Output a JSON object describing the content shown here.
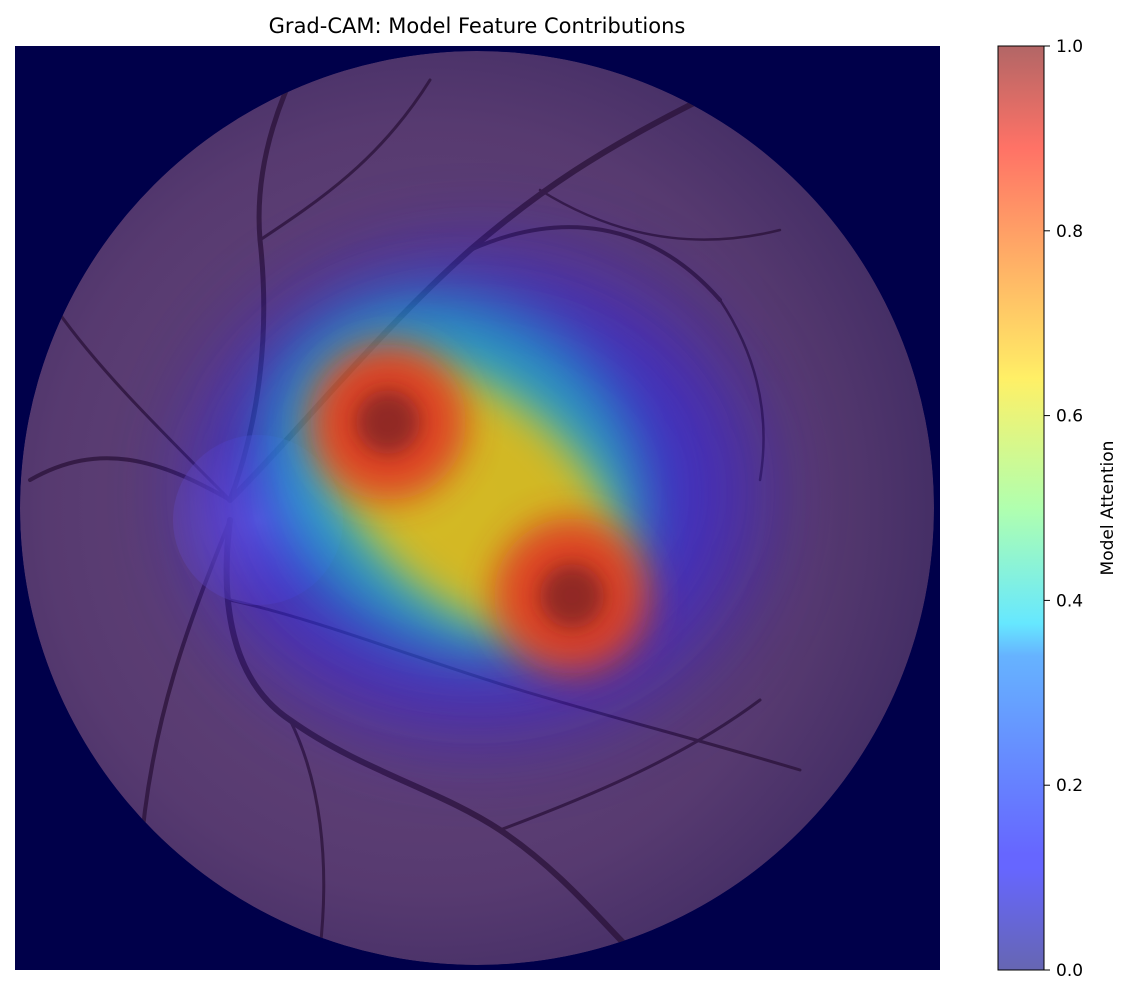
{
  "chart_data": {
    "type": "heatmap",
    "title": "Grad-CAM: Model Feature Contributions",
    "xlabel": "",
    "ylabel": "",
    "axes_visible": false,
    "background": "fundus-image",
    "colormap": "jet",
    "overlay_alpha": 0.6,
    "value_range": [
      0,
      1
    ],
    "attention_peaks": [
      {
        "x": 0.405,
        "y": 0.41,
        "value": 1.0
      },
      {
        "x": 0.605,
        "y": 0.6,
        "value": 1.0
      }
    ],
    "colorbar": {
      "label": "Model Attention",
      "ticks": [
        "0.0",
        "0.2",
        "0.4",
        "0.6",
        "0.8",
        "1.0"
      ],
      "tick_values": [
        0.0,
        0.2,
        0.4,
        0.6,
        0.8,
        1.0
      ],
      "range": [
        0,
        1
      ]
    },
    "colors": {
      "outside_fundus": "#00004a",
      "fundus_base": "#5a3a6e",
      "vessel": "#2a1238"
    }
  }
}
